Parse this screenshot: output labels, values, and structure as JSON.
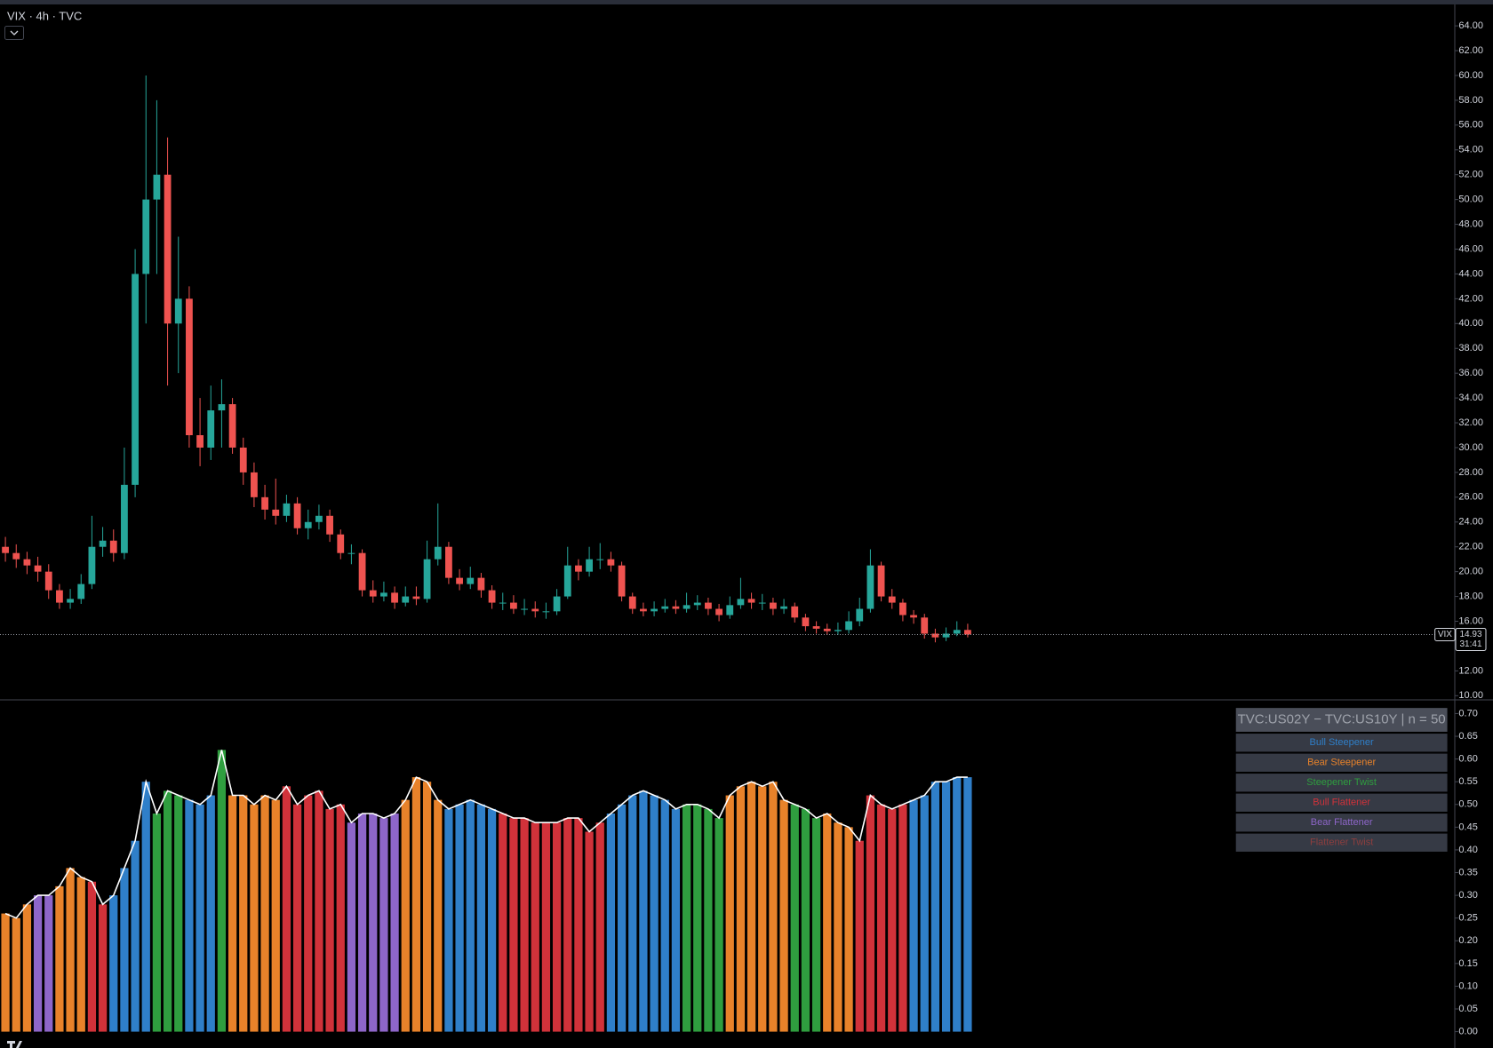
{
  "chart_data": [
    {
      "type": "candlestick",
      "title": "VIX · 4h · TVC",
      "up_color": "#26a69a",
      "down_color": "#ef5350",
      "open": [
        22,
        21.5,
        21,
        20.5,
        20,
        18.5,
        17.5,
        17.8,
        19,
        22,
        22.5,
        21.5,
        27,
        44,
        50,
        52,
        40,
        42,
        31,
        30,
        33,
        33.5,
        30,
        28,
        26,
        25,
        24.5,
        25.5,
        23.5,
        24,
        24.5,
        23,
        21.5,
        21.5,
        18.5,
        18,
        18.3,
        17.5,
        18,
        17.8,
        21,
        22,
        19.5,
        19,
        19.5,
        18.5,
        17.5,
        17.5,
        17,
        17,
        16.8,
        16.8,
        18,
        20.5,
        20,
        21,
        21,
        20.5,
        18,
        17,
        16.8,
        17,
        17.2,
        17,
        17.3,
        17.5,
        17,
        16.5,
        17.3,
        17.8,
        17.5,
        17.5,
        17,
        17.2,
        16.3,
        15.6,
        15.4,
        15.2,
        15.3,
        16,
        17,
        20.5,
        18,
        17.5,
        16.5,
        16.3,
        15,
        14.7,
        15,
        15.3
      ],
      "high": [
        22.8,
        22.2,
        21.6,
        21.2,
        20.6,
        19,
        18.6,
        19.8,
        24.5,
        23.6,
        23.4,
        30,
        46,
        60,
        58,
        55,
        47,
        43,
        34,
        35,
        35.5,
        34,
        30.8,
        28.8,
        27,
        27.5,
        26.2,
        26,
        25,
        25.4,
        25,
        23.4,
        22.2,
        21.8,
        19.3,
        19.2,
        18.8,
        18.8,
        18.8,
        22.5,
        25.5,
        22.4,
        20.2,
        20.4,
        19.9,
        18.9,
        18.3,
        18.1,
        17.8,
        17.6,
        17.5,
        18.6,
        22,
        21,
        22,
        22.3,
        21.6,
        20.8,
        18.3,
        17.5,
        17.6,
        17.8,
        17.7,
        18.3,
        18.1,
        17.9,
        17.4,
        18,
        19.5,
        18.3,
        18.2,
        17.9,
        17.8,
        17.5,
        16.6,
        16,
        15.8,
        15.9,
        16.8,
        17.9,
        21.8,
        20.8,
        18.6,
        17.8,
        16.9,
        16.6,
        15.4,
        15.5,
        16,
        15.8
      ],
      "low": [
        20.8,
        20.3,
        19.8,
        19.2,
        17.8,
        17,
        17,
        17.4,
        18.6,
        21.2,
        20.8,
        21,
        26,
        40,
        44,
        35,
        36,
        30,
        28.5,
        29,
        30,
        29.5,
        27,
        25.2,
        24.2,
        23.8,
        24,
        23,
        22.6,
        23.4,
        22.4,
        21,
        20.6,
        18,
        17.5,
        17.6,
        17,
        17.2,
        17.3,
        17.5,
        20.5,
        19,
        18.5,
        18.6,
        17.9,
        17,
        16.9,
        16.6,
        16.5,
        16.3,
        16.2,
        16.5,
        17.8,
        19.3,
        19.6,
        20.2,
        20,
        17.6,
        16.6,
        16.4,
        16.4,
        16.7,
        16.6,
        16.7,
        16.9,
        16.5,
        16,
        16.2,
        17,
        17,
        16.9,
        16.5,
        16.6,
        15.9,
        15.2,
        15,
        14.9,
        14.9,
        15,
        15.6,
        16.7,
        17.6,
        17,
        16,
        15.8,
        14.6,
        14.3,
        14.4,
        14.8,
        14.7
      ],
      "close": [
        21.5,
        21,
        20.5,
        20,
        18.5,
        17.5,
        17.8,
        19,
        22,
        22.5,
        21.5,
        27,
        44,
        50,
        52,
        40,
        42,
        31,
        30,
        33,
        33.5,
        30,
        28,
        26,
        25,
        24.5,
        25.5,
        23.5,
        24,
        24.5,
        23,
        21.5,
        21.5,
        18.5,
        18,
        18.3,
        17.5,
        18,
        17.8,
        21,
        22,
        19.5,
        19,
        19.5,
        18.5,
        17.5,
        17.5,
        17,
        17,
        16.8,
        16.8,
        18,
        20.5,
        20,
        21,
        21,
        20.5,
        18,
        17,
        16.8,
        17,
        17.2,
        17,
        17.3,
        17.5,
        17,
        16.5,
        17.3,
        17.8,
        17.5,
        17.5,
        17,
        17.2,
        16.3,
        15.6,
        15.4,
        15.2,
        15.3,
        16,
        17,
        20.5,
        18,
        17.5,
        16.5,
        16.3,
        15,
        14.7,
        15,
        15.3,
        14.93
      ],
      "ylim": [
        9.7,
        65.7
      ],
      "yticks": [
        {
          "value": 10,
          "label": "10.00"
        },
        {
          "value": 12,
          "label": "12.00"
        },
        {
          "value": 14,
          "label": "14.00"
        },
        {
          "value": 16,
          "label": "16.00"
        },
        {
          "value": 18,
          "label": "18.00"
        },
        {
          "value": 20,
          "label": "20.00"
        },
        {
          "value": 22,
          "label": "22.00"
        },
        {
          "value": 24,
          "label": "24.00"
        },
        {
          "value": 26,
          "label": "26.00"
        },
        {
          "value": 28,
          "label": "28.00"
        },
        {
          "value": 30,
          "label": "30.00"
        },
        {
          "value": 32,
          "label": "32.00"
        },
        {
          "value": 34,
          "label": "34.00"
        },
        {
          "value": 36,
          "label": "36.00"
        },
        {
          "value": 38,
          "label": "38.00"
        },
        {
          "value": 40,
          "label": "40.00"
        },
        {
          "value": 42,
          "label": "42.00"
        },
        {
          "value": 44,
          "label": "44.00"
        },
        {
          "value": 46,
          "label": "46.00"
        },
        {
          "value": 48,
          "label": "48.00"
        },
        {
          "value": 50,
          "label": "50.00"
        },
        {
          "value": 52,
          "label": "52.00"
        },
        {
          "value": 54,
          "label": "54.00"
        },
        {
          "value": 56,
          "label": "56.00"
        },
        {
          "value": 58,
          "label": "58.00"
        },
        {
          "value": 60,
          "label": "60.00"
        },
        {
          "value": 62,
          "label": "62.00"
        },
        {
          "value": 64,
          "label": "64.00"
        }
      ],
      "last_label": "VIX",
      "last_value": 14.93,
      "countdown": "31:41"
    },
    {
      "type": "bar",
      "legend_title": "TVC:US02Y − TVC:US10Y | n = 50",
      "line_color": "#ffffff",
      "legend": [
        {
          "name": "Bull Steepener",
          "color": "#2f7fc9"
        },
        {
          "name": "Bear Steepener",
          "color": "#e8822a"
        },
        {
          "name": "Steepener Twist",
          "color": "#2f9e3f"
        },
        {
          "name": "Bull Flattener",
          "color": "#d1323a"
        },
        {
          "name": "Bear Flattener",
          "color": "#8e66c9"
        },
        {
          "name": "Flattener Twist",
          "color": "#8d3e3e"
        }
      ],
      "values": [
        0.26,
        0.25,
        0.28,
        0.3,
        0.3,
        0.32,
        0.36,
        0.34,
        0.33,
        0.28,
        0.3,
        0.36,
        0.42,
        0.55,
        0.48,
        0.53,
        0.52,
        0.51,
        0.5,
        0.52,
        0.62,
        0.52,
        0.52,
        0.5,
        0.52,
        0.51,
        0.54,
        0.5,
        0.52,
        0.53,
        0.49,
        0.5,
        0.46,
        0.48,
        0.48,
        0.47,
        0.48,
        0.51,
        0.56,
        0.55,
        0.51,
        0.49,
        0.5,
        0.51,
        0.5,
        0.49,
        0.48,
        0.47,
        0.47,
        0.46,
        0.46,
        0.46,
        0.47,
        0.47,
        0.44,
        0.46,
        0.48,
        0.5,
        0.52,
        0.53,
        0.52,
        0.51,
        0.49,
        0.5,
        0.5,
        0.49,
        0.47,
        0.52,
        0.54,
        0.55,
        0.54,
        0.55,
        0.51,
        0.5,
        0.49,
        0.47,
        0.48,
        0.46,
        0.45,
        0.42,
        0.52,
        0.5,
        0.49,
        0.5,
        0.51,
        0.52,
        0.55,
        0.55,
        0.56,
        0.56
      ],
      "colors": [
        "#e8822a",
        "#e8822a",
        "#e8822a",
        "#8e66c9",
        "#8e66c9",
        "#e8822a",
        "#e8822a",
        "#e8822a",
        "#d1323a",
        "#d1323a",
        "#2f7fc9",
        "#2f7fc9",
        "#2f7fc9",
        "#2f7fc9",
        "#2f9e3f",
        "#2f9e3f",
        "#2f9e3f",
        "#2f7fc9",
        "#2f7fc9",
        "#2f7fc9",
        "#2f9e3f",
        "#e8822a",
        "#e8822a",
        "#e8822a",
        "#e8822a",
        "#e8822a",
        "#d1323a",
        "#d1323a",
        "#d1323a",
        "#d1323a",
        "#d1323a",
        "#d1323a",
        "#8e66c9",
        "#8e66c9",
        "#8e66c9",
        "#8e66c9",
        "#8e66c9",
        "#e8822a",
        "#e8822a",
        "#e8822a",
        "#e8822a",
        "#2f7fc9",
        "#2f7fc9",
        "#2f7fc9",
        "#2f7fc9",
        "#2f7fc9",
        "#d1323a",
        "#d1323a",
        "#d1323a",
        "#d1323a",
        "#d1323a",
        "#d1323a",
        "#d1323a",
        "#d1323a",
        "#d1323a",
        "#d1323a",
        "#2f7fc9",
        "#2f7fc9",
        "#2f7fc9",
        "#2f7fc9",
        "#2f7fc9",
        "#2f7fc9",
        "#2f7fc9",
        "#2f9e3f",
        "#2f9e3f",
        "#2f9e3f",
        "#2f9e3f",
        "#e8822a",
        "#e8822a",
        "#e8822a",
        "#e8822a",
        "#e8822a",
        "#e8822a",
        "#2f9e3f",
        "#2f9e3f",
        "#2f9e3f",
        "#e8822a",
        "#e8822a",
        "#e8822a",
        "#d1323a",
        "#d1323a",
        "#d1323a",
        "#d1323a",
        "#d1323a",
        "#2f7fc9",
        "#2f7fc9",
        "#2f7fc9",
        "#2f7fc9",
        "#2f7fc9",
        "#2f7fc9"
      ],
      "ylim": [
        -0.029,
        0.727
      ],
      "yticks": [
        {
          "value": 0,
          "label": "0.00"
        },
        {
          "value": 0.05,
          "label": "0.05"
        },
        {
          "value": 0.1,
          "label": "0.10"
        },
        {
          "value": 0.15,
          "label": "0.15"
        },
        {
          "value": 0.2,
          "label": "0.20"
        },
        {
          "value": 0.25,
          "label": "0.25"
        },
        {
          "value": 0.3,
          "label": "0.30"
        },
        {
          "value": 0.35,
          "label": "0.35"
        },
        {
          "value": 0.4,
          "label": "0.40"
        },
        {
          "value": 0.45,
          "label": "0.45"
        },
        {
          "value": 0.5,
          "label": "0.50"
        },
        {
          "value": 0.55,
          "label": "0.55"
        },
        {
          "value": 0.6,
          "label": "0.60"
        },
        {
          "value": 0.65,
          "label": "0.65"
        },
        {
          "value": 0.7,
          "label": "0.70"
        }
      ]
    }
  ]
}
